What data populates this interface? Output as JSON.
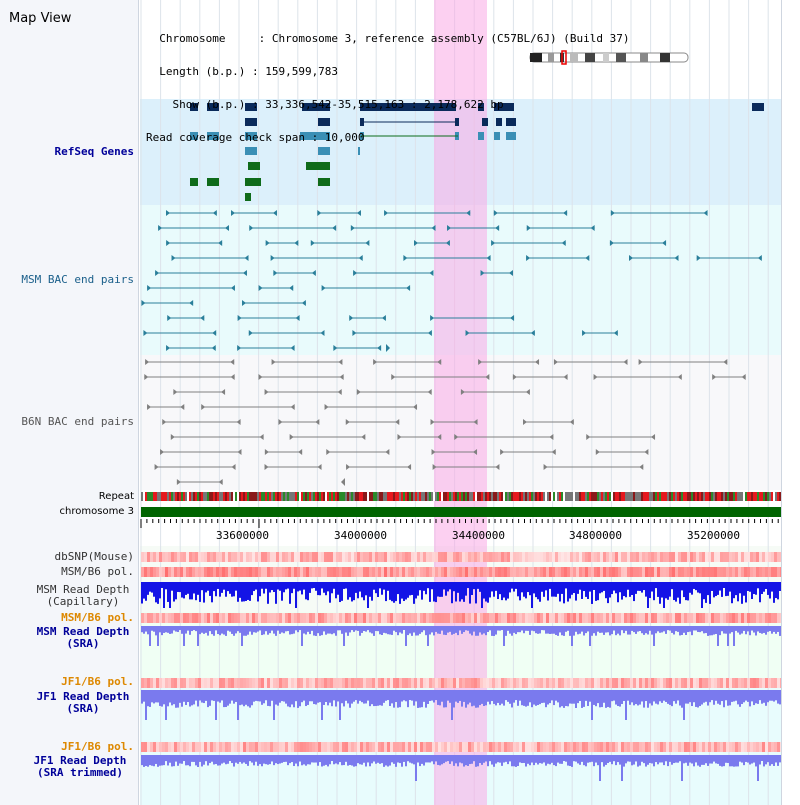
{
  "header": {
    "title": "Map View",
    "info_lines": [
      "  Chromosome     : Chromosome 3, reference assembly (C57BL/6J) (Build 37)",
      "  Length (b.p.) : 159,599,783",
      "    Show (b.p.) : 33,336,542-35,515,163 : 2,178,622 bp",
      "Read coverage check span : 10,000"
    ]
  },
  "tracks": {
    "refseq": "RefSeq Genes",
    "msm_bac": "MSM BAC end pairs",
    "b6n_bac": "B6N BAC end pairs",
    "repeat": "Repeat",
    "chromosome": "chromosome 3",
    "dbsnp": "dbSNP(Mouse)",
    "msm_pol": "MSM/B6 pol.",
    "msm_read_depth_cap": "MSM Read Depth\n(Capillary)",
    "msm_pol_orange": "MSM/B6 pol.",
    "msm_read_depth_sra": "MSM Read Depth\n(SRA)",
    "jf1_pol_1": "JF1/B6 pol.",
    "jf1_read_depth_sra": "JF1 Read Depth\n(SRA)",
    "jf1_pol_2": "JF1/B6 pol.",
    "jf1_read_depth_trim": "JF1 Read Depth\n(SRA trimmed)"
  },
  "axis": {
    "ticks": [
      "33600000",
      "34000000",
      "34400000",
      "34800000",
      "35200000"
    ]
  },
  "colors": {
    "refseq_bg": "#dcf0fb",
    "msm_bac": "#2a7f9a",
    "b6n_bac": "#808080",
    "highlight": "#f7c8ee",
    "read_depth_blue": "#1414e6",
    "read_depth_light": "#7a7aee",
    "label_navy": "#000099",
    "label_orange": "#dd8800",
    "gene_dark": "#0a2a5a",
    "gene_mid": "#3a8fb5",
    "gene_green": "#0f6b1a",
    "chromosome_bar": "#006400"
  }
}
